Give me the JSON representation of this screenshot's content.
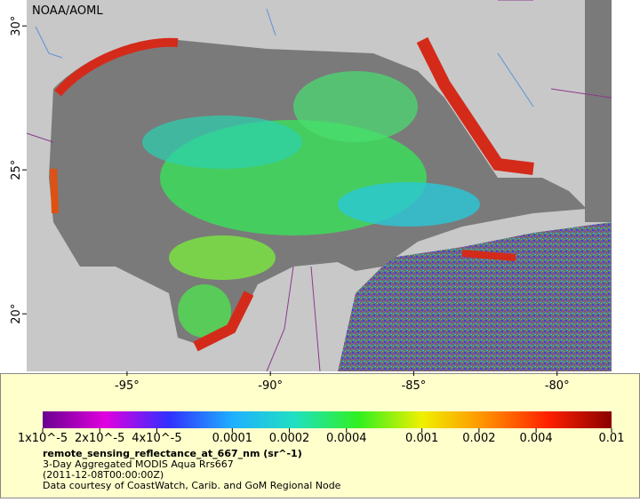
{
  "map": {
    "title": "NOAA/AOML",
    "xlim": [
      -98.5,
      -78.1
    ],
    "ylim": [
      18,
      30.9
    ],
    "xticks": [
      {
        "value": -95,
        "label": "-95°"
      },
      {
        "value": -90,
        "label": "-90°"
      },
      {
        "value": -85,
        "label": "-85°"
      },
      {
        "value": -80,
        "label": "-80°"
      }
    ],
    "yticks": [
      {
        "value": 20,
        "label": "20°"
      },
      {
        "value": 25,
        "label": "25°"
      },
      {
        "value": 30,
        "label": "30°"
      }
    ]
  },
  "colorbar": {
    "scale": "log",
    "lim": [
      1e-05,
      0.01
    ],
    "colors": [
      "#6a0090",
      "#e000e0",
      "#3030ff",
      "#20b0ff",
      "#20e0c0",
      "#30f020",
      "#f0f000",
      "#ff9000",
      "#ff2000",
      "#8a0000"
    ],
    "ticks": [
      {
        "value": 1e-05,
        "label": "1x10^-5"
      },
      {
        "value": 2e-05,
        "label": "2x10^-5"
      },
      {
        "value": 4e-05,
        "label": "4x10^-5"
      },
      0.0001,
      0.0002,
      0.0004,
      0.001,
      0.002,
      0.004,
      0.01
    ]
  },
  "caption": [
    "remote_sensing_reflectance_at_667_nm (sr^-1)",
    "3-Day Aggregated MODIS Aqua Rrs667",
    "(2011-12-08T00:00:00Z)",
    "Data courtesy of CoastWatch, Carib. and GoM Regional Node"
  ]
}
